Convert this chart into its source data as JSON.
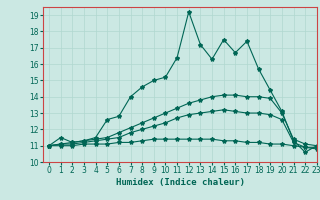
{
  "xlabel": "Humidex (Indice chaleur)",
  "bg_color": "#cbe8e3",
  "grid_color": "#b0d8d0",
  "line_color": "#006655",
  "spine_color": "#cc4444",
  "xlim": [
    -0.5,
    23
  ],
  "ylim": [
    10,
    19.5
  ],
  "lines": [
    {
      "x": [
        0,
        1,
        2,
        3,
        4,
        5,
        6,
        7,
        8,
        9,
        10,
        11,
        12,
        13,
        14,
        15,
        16,
        17,
        18,
        19,
        20,
        21,
        22,
        23
      ],
      "y": [
        11.0,
        11.5,
        11.2,
        11.3,
        11.5,
        12.6,
        12.8,
        14.0,
        14.6,
        15.0,
        15.2,
        16.4,
        19.2,
        17.2,
        16.3,
        17.5,
        16.7,
        17.4,
        15.7,
        14.4,
        13.1,
        11.3,
        10.6,
        11.0
      ]
    },
    {
      "x": [
        0,
        1,
        2,
        3,
        4,
        5,
        6,
        7,
        8,
        9,
        10,
        11,
        12,
        13,
        14,
        15,
        16,
        17,
        18,
        19,
        20,
        21,
        22,
        23
      ],
      "y": [
        11.0,
        11.1,
        11.2,
        11.3,
        11.4,
        11.5,
        11.8,
        12.1,
        12.4,
        12.7,
        13.0,
        13.3,
        13.6,
        13.8,
        14.0,
        14.1,
        14.1,
        14.0,
        14.0,
        13.9,
        13.0,
        11.4,
        11.1,
        11.0
      ]
    },
    {
      "x": [
        0,
        1,
        2,
        3,
        4,
        5,
        6,
        7,
        8,
        9,
        10,
        11,
        12,
        13,
        14,
        15,
        16,
        17,
        18,
        19,
        20,
        21,
        22,
        23
      ],
      "y": [
        11.0,
        11.1,
        11.1,
        11.2,
        11.3,
        11.4,
        11.5,
        11.8,
        12.0,
        12.2,
        12.4,
        12.7,
        12.9,
        13.0,
        13.1,
        13.2,
        13.1,
        13.0,
        13.0,
        12.9,
        12.6,
        11.2,
        10.9,
        10.8
      ]
    },
    {
      "x": [
        0,
        1,
        2,
        3,
        4,
        5,
        6,
        7,
        8,
        9,
        10,
        11,
        12,
        13,
        14,
        15,
        16,
        17,
        18,
        19,
        20,
        21,
        22,
        23
      ],
      "y": [
        11.0,
        11.0,
        11.0,
        11.1,
        11.1,
        11.1,
        11.2,
        11.2,
        11.3,
        11.4,
        11.4,
        11.4,
        11.4,
        11.4,
        11.4,
        11.3,
        11.3,
        11.2,
        11.2,
        11.1,
        11.1,
        11.0,
        10.9,
        10.9
      ]
    }
  ],
  "yticks": [
    10,
    11,
    12,
    13,
    14,
    15,
    16,
    17,
    18,
    19
  ],
  "xticks": [
    0,
    1,
    2,
    3,
    4,
    5,
    6,
    7,
    8,
    9,
    10,
    11,
    12,
    13,
    14,
    15,
    16,
    17,
    18,
    19,
    20,
    21,
    22,
    23
  ],
  "marker": "*",
  "markersize": 3,
  "linewidth": 0.8,
  "xlabel_fontsize": 6.5,
  "tick_fontsize": 5.5
}
